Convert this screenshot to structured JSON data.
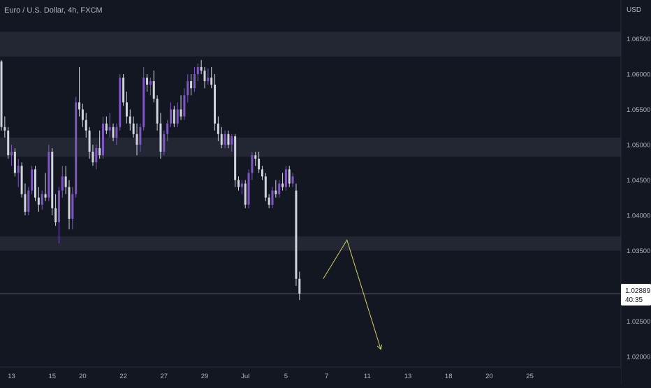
{
  "header": {
    "title": "Euro / U.S. Dollar, 4h, FXCM",
    "currency": "USD"
  },
  "price_tag": {
    "price": "1.02889",
    "countdown": "40:35"
  },
  "colors": {
    "background": "#131722",
    "bull": "#7e57c2",
    "bear": "#d1d4dc",
    "zone": "#2a2e39",
    "projection": "#d4d45e",
    "price_line": "#5d606b",
    "axis_text": "#b2b5be"
  },
  "chart_data": {
    "type": "candlestick",
    "ylim": [
      1.0185,
      1.0705
    ],
    "x_axis_ticks": [
      {
        "label": "13",
        "bar": 3
      },
      {
        "label": "15",
        "bar": 15
      },
      {
        "label": "20",
        "bar": 24
      },
      {
        "label": "22",
        "bar": 36
      },
      {
        "label": "27",
        "bar": 48
      },
      {
        "label": "29",
        "bar": 60
      },
      {
        "label": "Jul",
        "bar": 72
      },
      {
        "label": "5",
        "bar": 84
      },
      {
        "label": "7",
        "bar": 96
      },
      {
        "label": "11",
        "bar": 108
      },
      {
        "label": "13",
        "bar": 120
      },
      {
        "label": "18",
        "bar": 132
      },
      {
        "label": "20",
        "bar": 144
      },
      {
        "label": "25",
        "bar": 156
      }
    ],
    "y_axis_ticks": [
      "1.06500",
      "1.06000",
      "1.05500",
      "1.05000",
      "1.04500",
      "1.04000",
      "1.03500",
      "1.03000",
      "1.02500",
      "1.02000"
    ],
    "zones": [
      {
        "low": 1.0625,
        "high": 1.066
      },
      {
        "low": 1.0483,
        "high": 1.051
      },
      {
        "low": 1.035,
        "high": 1.037
      }
    ],
    "current_price": 1.02889,
    "projection": [
      {
        "bar": 95,
        "price": 1.031
      },
      {
        "bar": 102,
        "price": 1.0365
      },
      {
        "bar": 112,
        "price": 1.021
      }
    ],
    "candles": [
      [
        1.0618,
        1.062,
        1.052,
        1.0525
      ],
      [
        1.0525,
        1.054,
        1.051,
        1.052
      ],
      [
        1.052,
        1.0525,
        1.048,
        1.0485
      ],
      [
        1.0485,
        1.05,
        1.047,
        1.049
      ],
      [
        1.049,
        1.0495,
        1.0455,
        1.046
      ],
      [
        1.046,
        1.048,
        1.044,
        1.047
      ],
      [
        1.047,
        1.0475,
        1.0425,
        1.043
      ],
      [
        1.043,
        1.0445,
        1.04,
        1.0405
      ],
      [
        1.0405,
        1.044,
        1.04,
        1.0435
      ],
      [
        1.0435,
        1.047,
        1.043,
        1.0465
      ],
      [
        1.0465,
        1.047,
        1.042,
        1.0425
      ],
      [
        1.0425,
        1.044,
        1.0405,
        1.0415
      ],
      [
        1.0415,
        1.0435,
        1.0408,
        1.043
      ],
      [
        1.043,
        1.046,
        1.042,
        1.0425
      ],
      [
        1.0425,
        1.05,
        1.042,
        1.049
      ],
      [
        1.049,
        1.0495,
        1.04,
        1.041
      ],
      [
        1.041,
        1.043,
        1.0385,
        1.039
      ],
      [
        1.039,
        1.044,
        1.036,
        1.0435
      ],
      [
        1.0435,
        1.047,
        1.0425,
        1.0455
      ],
      [
        1.0455,
        1.047,
        1.043,
        1.044
      ],
      [
        1.044,
        1.045,
        1.038,
        1.0395
      ],
      [
        1.0395,
        1.044,
        1.038,
        1.043
      ],
      [
        1.043,
        1.0568,
        1.0425,
        1.056
      ],
      [
        1.056,
        1.061,
        1.054,
        1.055
      ],
      [
        1.055,
        1.0558,
        1.0525,
        1.0535
      ],
      [
        1.0535,
        1.0545,
        1.051,
        1.052
      ],
      [
        1.052,
        1.0525,
        1.048,
        1.049
      ],
      [
        1.049,
        1.05,
        1.047,
        1.0475
      ],
      [
        1.0475,
        1.05,
        1.0465,
        1.0495
      ],
      [
        1.0495,
        1.052,
        1.048,
        1.0485
      ],
      [
        1.0485,
        1.054,
        1.048,
        1.053
      ],
      [
        1.053,
        1.054,
        1.0515,
        1.052
      ],
      [
        1.052,
        1.0545,
        1.051,
        1.0525
      ],
      [
        1.0525,
        1.053,
        1.0505,
        1.051
      ],
      [
        1.051,
        1.053,
        1.05,
        1.0525
      ],
      [
        1.0525,
        1.06,
        1.052,
        1.0595
      ],
      [
        1.0595,
        1.06,
        1.0555,
        1.056
      ],
      [
        1.056,
        1.0575,
        1.053,
        1.054
      ],
      [
        1.054,
        1.055,
        1.052,
        1.053
      ],
      [
        1.053,
        1.054,
        1.051,
        1.0515
      ],
      [
        1.0515,
        1.053,
        1.0485,
        1.05
      ],
      [
        1.05,
        1.053,
        1.049,
        1.0525
      ],
      [
        1.0525,
        1.061,
        1.052,
        1.0595
      ],
      [
        1.0595,
        1.06,
        1.0575,
        1.0585
      ],
      [
        1.0585,
        1.0595,
        1.057,
        1.059
      ],
      [
        1.059,
        1.0605,
        1.056,
        1.0565
      ],
      [
        1.0565,
        1.057,
        1.052,
        1.053
      ],
      [
        1.053,
        1.0545,
        1.048,
        1.049
      ],
      [
        1.049,
        1.052,
        1.0485,
        1.0515
      ],
      [
        1.0515,
        1.0535,
        1.0505,
        1.053
      ],
      [
        1.053,
        1.056,
        1.0525,
        1.055
      ],
      [
        1.055,
        1.0555,
        1.0525,
        1.053
      ],
      [
        1.053,
        1.056,
        1.0525,
        1.055
      ],
      [
        1.055,
        1.057,
        1.0535,
        1.054
      ],
      [
        1.054,
        1.058,
        1.0535,
        1.057
      ],
      [
        1.057,
        1.06,
        1.056,
        1.059
      ],
      [
        1.059,
        1.06,
        1.057,
        1.058
      ],
      [
        1.058,
        1.061,
        1.0575,
        1.06
      ],
      [
        1.06,
        1.0615,
        1.059,
        1.061
      ],
      [
        1.061,
        1.062,
        1.06,
        1.0605
      ],
      [
        1.0605,
        1.061,
        1.058,
        1.059
      ],
      [
        1.059,
        1.0608,
        1.0585,
        1.0595
      ],
      [
        1.0595,
        1.061,
        1.058,
        1.0585
      ],
      [
        1.0585,
        1.06,
        1.052,
        1.053
      ],
      [
        1.053,
        1.054,
        1.0505,
        1.0515
      ],
      [
        1.0515,
        1.0525,
        1.0495,
        1.05
      ],
      [
        1.05,
        1.052,
        1.0495,
        1.0515
      ],
      [
        1.0515,
        1.052,
        1.0495,
        1.05
      ],
      [
        1.05,
        1.0515,
        1.049,
        1.0512
      ],
      [
        1.0512,
        1.0515,
        1.044,
        1.045
      ],
      [
        1.045,
        1.0455,
        1.0435,
        1.044
      ],
      [
        1.044,
        1.045,
        1.043,
        1.0445
      ],
      [
        1.0445,
        1.045,
        1.041,
        1.0415
      ],
      [
        1.0415,
        1.0465,
        1.041,
        1.046
      ],
      [
        1.046,
        1.049,
        1.045,
        1.0485
      ],
      [
        1.0485,
        1.049,
        1.047,
        1.048
      ],
      [
        1.048,
        1.049,
        1.046,
        1.0465
      ],
      [
        1.0465,
        1.047,
        1.045,
        1.0455
      ],
      [
        1.0455,
        1.046,
        1.042,
        1.0425
      ],
      [
        1.0425,
        1.043,
        1.041,
        1.0415
      ],
      [
        1.0415,
        1.044,
        1.041,
        1.0435
      ],
      [
        1.0435,
        1.045,
        1.0425,
        1.043
      ],
      [
        1.043,
        1.045,
        1.0425,
        1.0445
      ],
      [
        1.0445,
        1.046,
        1.0435,
        1.044
      ],
      [
        1.044,
        1.047,
        1.0435,
        1.0465
      ],
      [
        1.0465,
        1.047,
        1.044,
        1.0445
      ],
      [
        1.0445,
        1.046,
        1.044,
        1.0455
      ],
      [
        1.0435,
        1.0445,
        1.03,
        1.031
      ],
      [
        1.031,
        1.032,
        1.028,
        1.0289
      ]
    ]
  }
}
